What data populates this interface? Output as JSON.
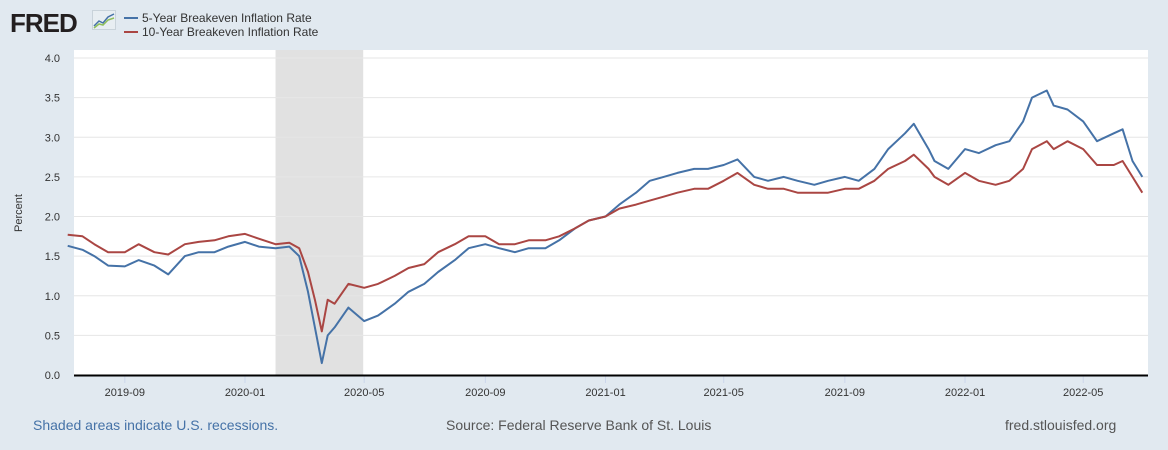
{
  "header": {
    "logo_text": "FRED"
  },
  "legend": [
    {
      "label": "5-Year Breakeven Inflation Rate",
      "color": "#4572a7"
    },
    {
      "label": "10-Year Breakeven Inflation Rate",
      "color": "#aa4643"
    }
  ],
  "footer": {
    "recession_note": "Shaded areas indicate U.S. recessions.",
    "source": "Source: Federal Reserve Bank of St. Louis",
    "site": "fred.stlouisfed.org"
  },
  "chart_data": {
    "type": "line",
    "ylabel": "Percent",
    "ylim": [
      0,
      4
    ],
    "yticks": [
      "0.0",
      "0.5",
      "1.0",
      "1.5",
      "2.0",
      "2.5",
      "3.0",
      "3.5",
      "4.0"
    ],
    "xlim": [
      "2019-07-05",
      "2022-06-30"
    ],
    "xticks": [
      "2019-09",
      "2020-01",
      "2020-05",
      "2020-09",
      "2021-01",
      "2021-05",
      "2021-09",
      "2022-01",
      "2022-05"
    ],
    "recessions": [
      [
        "2020-02-01",
        "2020-04-30"
      ]
    ],
    "grid": true,
    "x": [
      "2019-07-05",
      "2019-07-20",
      "2019-08-01",
      "2019-08-15",
      "2019-09-01",
      "2019-09-15",
      "2019-10-01",
      "2019-10-15",
      "2019-11-01",
      "2019-11-15",
      "2019-12-01",
      "2019-12-15",
      "2020-01-01",
      "2020-01-15",
      "2020-02-01",
      "2020-02-15",
      "2020-02-25",
      "2020-03-05",
      "2020-03-12",
      "2020-03-19",
      "2020-03-25",
      "2020-04-01",
      "2020-04-15",
      "2020-05-01",
      "2020-05-15",
      "2020-06-01",
      "2020-06-15",
      "2020-07-01",
      "2020-07-15",
      "2020-08-01",
      "2020-08-15",
      "2020-09-01",
      "2020-09-15",
      "2020-10-01",
      "2020-10-15",
      "2020-11-01",
      "2020-11-15",
      "2020-12-01",
      "2020-12-15",
      "2021-01-01",
      "2021-01-15",
      "2021-02-01",
      "2021-02-15",
      "2021-03-01",
      "2021-03-15",
      "2021-04-01",
      "2021-04-15",
      "2021-05-01",
      "2021-05-15",
      "2021-06-01",
      "2021-06-15",
      "2021-07-01",
      "2021-07-15",
      "2021-08-01",
      "2021-08-15",
      "2021-09-01",
      "2021-09-15",
      "2021-10-01",
      "2021-10-15",
      "2021-11-01",
      "2021-11-10",
      "2021-11-25",
      "2021-12-01",
      "2021-12-15",
      "2022-01-01",
      "2022-01-15",
      "2022-02-01",
      "2022-02-15",
      "2022-03-01",
      "2022-03-10",
      "2022-03-25",
      "2022-04-01",
      "2022-04-15",
      "2022-05-01",
      "2022-05-15",
      "2022-06-01",
      "2022-06-10",
      "2022-06-20",
      "2022-06-30"
    ],
    "series": [
      {
        "name": "5-Year Breakeven Inflation Rate",
        "values": [
          1.63,
          1.58,
          1.5,
          1.38,
          1.37,
          1.45,
          1.38,
          1.27,
          1.5,
          1.55,
          1.55,
          1.62,
          1.68,
          1.62,
          1.6,
          1.62,
          1.5,
          1.05,
          0.6,
          0.15,
          0.5,
          0.6,
          0.85,
          0.68,
          0.75,
          0.9,
          1.05,
          1.15,
          1.3,
          1.45,
          1.6,
          1.65,
          1.6,
          1.55,
          1.6,
          1.6,
          1.7,
          1.85,
          1.95,
          2.0,
          2.15,
          2.3,
          2.45,
          2.5,
          2.55,
          2.6,
          2.6,
          2.65,
          2.72,
          2.5,
          2.45,
          2.5,
          2.45,
          2.4,
          2.45,
          2.5,
          2.45,
          2.6,
          2.85,
          3.05,
          3.17,
          2.85,
          2.7,
          2.6,
          2.85,
          2.8,
          2.9,
          2.95,
          3.2,
          3.5,
          3.59,
          3.4,
          3.35,
          3.2,
          2.95,
          3.05,
          3.1,
          2.7,
          2.5
        ]
      },
      {
        "name": "10-Year Breakeven Inflation Rate",
        "values": [
          1.77,
          1.75,
          1.65,
          1.55,
          1.55,
          1.65,
          1.55,
          1.52,
          1.65,
          1.68,
          1.7,
          1.75,
          1.78,
          1.72,
          1.65,
          1.67,
          1.6,
          1.3,
          0.95,
          0.55,
          0.95,
          0.9,
          1.15,
          1.1,
          1.15,
          1.25,
          1.35,
          1.4,
          1.55,
          1.65,
          1.75,
          1.75,
          1.65,
          1.65,
          1.7,
          1.7,
          1.75,
          1.85,
          1.95,
          2.0,
          2.1,
          2.15,
          2.2,
          2.25,
          2.3,
          2.35,
          2.35,
          2.45,
          2.55,
          2.4,
          2.35,
          2.35,
          2.3,
          2.3,
          2.3,
          2.35,
          2.35,
          2.45,
          2.6,
          2.7,
          2.78,
          2.6,
          2.5,
          2.4,
          2.55,
          2.45,
          2.4,
          2.45,
          2.6,
          2.85,
          2.95,
          2.85,
          2.95,
          2.85,
          2.65,
          2.65,
          2.7,
          2.5,
          2.3
        ]
      }
    ]
  }
}
